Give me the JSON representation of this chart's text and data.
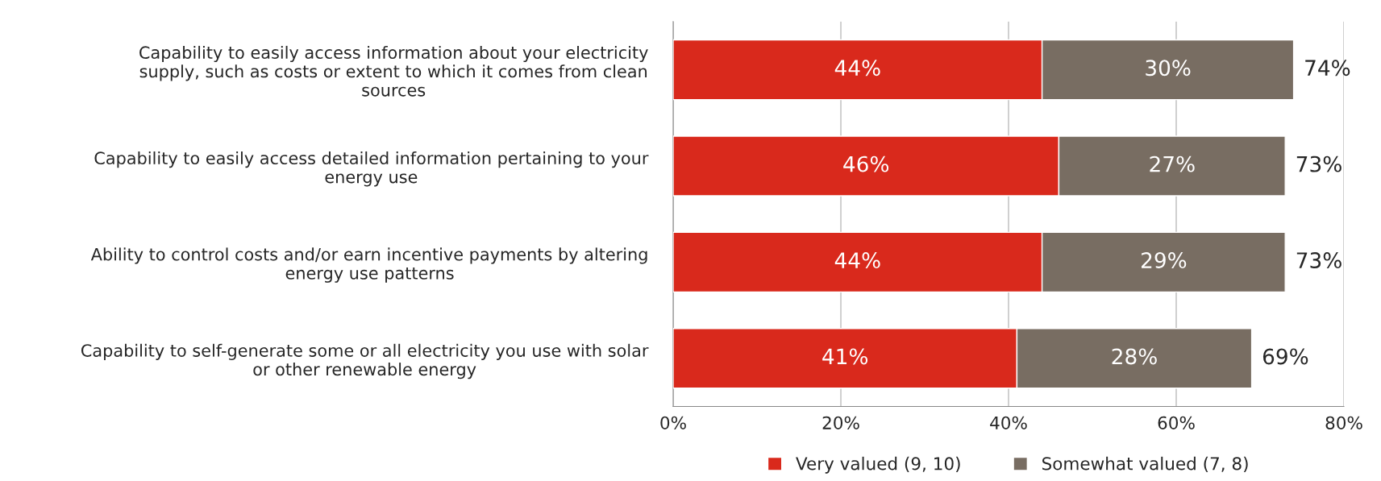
{
  "chart_data": {
    "type": "bar",
    "orientation": "horizontal",
    "stacked": true,
    "categories": [
      "Capability to easily access information about your electricity\nsupply, such as costs or extent to which it comes from clean\nsources",
      "Capability to easily access detailed information pertaining to your\nenergy use",
      "Ability to control costs and/or earn incentive payments by altering\nenergy use patterns",
      "Capability to self-generate some or all electricity you use with solar\nor other renewable energy"
    ],
    "series": [
      {
        "name": "Very valued (9, 10)",
        "color": "#d9291c",
        "values": [
          44,
          46,
          44,
          41
        ],
        "value_labels": [
          "44%",
          "46%",
          "44%",
          "41%"
        ]
      },
      {
        "name": "Somewhat valued (7, 8)",
        "color": "#786d62",
        "values": [
          30,
          27,
          29,
          28
        ],
        "value_labels": [
          "30%",
          "27%",
          "29%",
          "28%"
        ]
      }
    ],
    "totals": [
      "74%",
      "73%",
      "73%",
      "69%"
    ],
    "xlim": [
      0,
      80
    ],
    "xticks": [
      {
        "value": 0,
        "label": "0%"
      },
      {
        "value": 20,
        "label": "20%"
      },
      {
        "value": 40,
        "label": "40%"
      },
      {
        "value": 60,
        "label": "60%"
      },
      {
        "value": 80,
        "label": "80%"
      }
    ],
    "grid": "x",
    "legend": "bottom"
  }
}
